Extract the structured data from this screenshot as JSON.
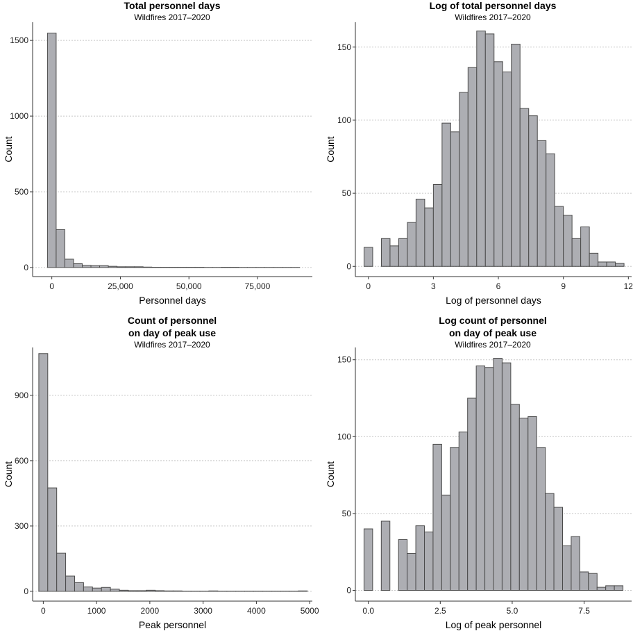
{
  "chart_data": [
    {
      "type": "bar",
      "title": "Total personnel days",
      "subtitle": "Wildfires 2017–2020",
      "xlabel": "Personnel days",
      "ylabel": "Count",
      "xlim": [
        -7000,
        95000
      ],
      "ylim": [
        -60,
        1620
      ],
      "x_ticks": [
        0,
        25000,
        50000,
        75000
      ],
      "x_tick_labels": [
        "0",
        "25,000",
        "50,000",
        "75,000"
      ],
      "y_ticks": [
        0,
        500,
        1000,
        1500
      ],
      "y_tick_labels": [
        "0",
        "500",
        "1000",
        "1500"
      ],
      "bin_start": -1585,
      "bin_width": 3170,
      "values": [
        1548,
        250,
        55,
        25,
        14,
        12,
        12,
        8,
        5,
        5,
        5,
        3,
        2,
        2,
        2,
        2,
        2,
        2,
        1,
        1,
        2,
        2,
        1,
        1,
        1,
        1,
        1,
        1,
        1
      ]
    },
    {
      "type": "bar",
      "title": "Log of total personnel days",
      "subtitle": "Wildfires 2017–2020",
      "xlabel": "Log of personnel days",
      "ylabel": "Count",
      "xlim": [
        -0.6,
        12.15
      ],
      "ylim": [
        -7,
        167
      ],
      "x_ticks": [
        0,
        3,
        6,
        9,
        12
      ],
      "x_tick_labels": [
        "0",
        "3",
        "6",
        "9",
        "12"
      ],
      "y_ticks": [
        0,
        50,
        100,
        150
      ],
      "y_tick_labels": [
        "0",
        "50",
        "100",
        "150"
      ],
      "bin_start": -0.2,
      "bin_width": 0.4,
      "values": [
        13,
        0,
        19,
        14,
        19,
        30,
        46,
        40,
        56,
        98,
        92,
        119,
        136,
        161,
        159,
        140,
        133,
        152,
        108,
        103,
        86,
        77,
        41,
        35,
        19,
        27,
        9,
        3,
        3,
        2
      ]
    },
    {
      "type": "bar",
      "title_lines": [
        "Count of personnel",
        "on day of peak use"
      ],
      "subtitle": "Wildfires 2017–2020",
      "xlabel": "Peak personnel",
      "ylabel": "Count",
      "xlim": [
        -200,
        5050
      ],
      "ylim": [
        -45,
        1120
      ],
      "x_ticks": [
        0,
        1000,
        2000,
        3000,
        4000,
        5000
      ],
      "x_tick_labels": [
        "0",
        "1000",
        "2000",
        "3000",
        "4000",
        "5000"
      ],
      "y_ticks": [
        0,
        300,
        600,
        900
      ],
      "y_tick_labels": [
        "0",
        "300",
        "600",
        "900"
      ],
      "bin_start": -84,
      "bin_width": 168,
      "values": [
        1092,
        475,
        175,
        70,
        40,
        20,
        15,
        18,
        10,
        5,
        3,
        3,
        5,
        3,
        2,
        2,
        1,
        1,
        1,
        2,
        1,
        1,
        1,
        1,
        1,
        1,
        1,
        1,
        1,
        2
      ]
    },
    {
      "type": "bar",
      "title_lines": [
        "Log count of personnel",
        "on day of peak use"
      ],
      "subtitle": "Wildfires 2017–2020",
      "xlabel": "Log of peak personnel",
      "ylabel": "Count",
      "xlim": [
        -0.45,
        9.15
      ],
      "ylim": [
        -7,
        158
      ],
      "x_ticks": [
        0,
        2.5,
        5,
        7.5
      ],
      "x_tick_labels": [
        "0.0",
        "2.5",
        "5.0",
        "7.5"
      ],
      "y_ticks": [
        0,
        50,
        100,
        150
      ],
      "y_tick_labels": [
        "0",
        "50",
        "100",
        "150"
      ],
      "bin_start": -0.15,
      "bin_width": 0.3,
      "values": [
        40,
        0,
        45,
        0,
        33,
        24,
        42,
        38,
        95,
        62,
        93,
        103,
        125,
        146,
        145,
        151,
        148,
        121,
        112,
        113,
        93,
        63,
        54,
        29,
        35,
        12,
        11,
        2,
        3,
        3
      ]
    }
  ]
}
